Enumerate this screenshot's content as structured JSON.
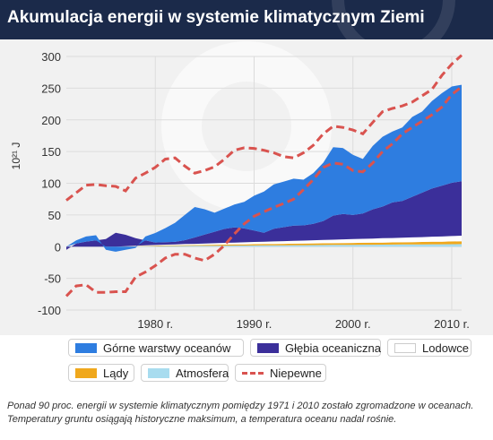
{
  "header": {
    "title": "Akumulacja energii w systemie klimatycznym Ziemi"
  },
  "footnote": "Ponad 90 proc. energii w systemie klimatycznym pomiędzy 1971 i 2010 zostało zgromadzone w oceanach. Temperatury gruntu osiągają historyczne maksimum, a temperatura oceanu nadal rośnie.",
  "colors": {
    "header_bg": "#1b2a4a",
    "plot_bg": "#f1f1f1",
    "upper_ocean": "#2e7de0",
    "deep_ocean": "#3b2f9a",
    "ice": "#ffffff",
    "land": "#f0a81c",
    "atmosphere": "#a8dcef",
    "uncertainty": "#d9534f"
  },
  "legend": {
    "items": [
      {
        "label": "Górne warstwy oceanów",
        "color": "#2e7de0",
        "style": "fill"
      },
      {
        "label": "Głębia oceaniczna",
        "color": "#3b2f9a",
        "style": "fill"
      },
      {
        "label": "Lodowce",
        "color": "#ffffff",
        "style": "fill"
      },
      {
        "label": "Lądy",
        "color": "#f0a81c",
        "style": "fill"
      },
      {
        "label": "Atmosfera",
        "color": "#a8dcef",
        "style": "fill"
      },
      {
        "label": "Niepewne",
        "color": "#d9534f",
        "style": "dashed"
      }
    ]
  },
  "chart_data": {
    "type": "area",
    "stacked": true,
    "ylabel": "10²¹ J",
    "ylim": [
      -100,
      300
    ],
    "yticks": [
      -100,
      -50,
      0,
      50,
      100,
      150,
      200,
      250,
      300
    ],
    "xlim": [
      1971,
      2011
    ],
    "xticks": [
      1980,
      1990,
      2000,
      2010
    ],
    "xtick_labels": [
      "1980 r.",
      "1990 r.",
      "2000 r.",
      "2010 r."
    ],
    "grid": true,
    "legend_position": "bottom",
    "x": [
      1971,
      1972,
      1973,
      1974,
      1975,
      1976,
      1977,
      1978,
      1979,
      1980,
      1981,
      1982,
      1983,
      1984,
      1985,
      1986,
      1987,
      1988,
      1989,
      1990,
      1991,
      1992,
      1993,
      1994,
      1995,
      1996,
      1997,
      1998,
      1999,
      2000,
      2001,
      2002,
      2003,
      2004,
      2005,
      2006,
      2007,
      2008,
      2009,
      2010,
      2011
    ],
    "series": [
      {
        "name": "Atmosfera",
        "values": [
          0,
          0,
          0,
          0,
          0,
          0,
          0.2,
          0.4,
          0.6,
          0.8,
          1,
          1.1,
          1.2,
          1.3,
          1.4,
          1.5,
          1.6,
          1.7,
          1.8,
          1.9,
          2,
          2.1,
          2.2,
          2.3,
          2.4,
          2.5,
          2.6,
          2.7,
          2.8,
          2.9,
          3,
          3.1,
          3.2,
          3.3,
          3.4,
          3.5,
          3.6,
          3.7,
          3.8,
          3.9,
          4
        ]
      },
      {
        "name": "Lądy",
        "values": [
          0,
          0,
          0,
          0,
          0,
          0,
          0.2,
          0.4,
          0.6,
          0.8,
          1,
          1,
          1.2,
          1.2,
          1.4,
          1.5,
          1.6,
          1.7,
          1.8,
          2,
          2.1,
          2.2,
          2.3,
          2.4,
          2.5,
          2.6,
          2.7,
          2.8,
          2.9,
          3,
          3.1,
          3.2,
          3.3,
          3.4,
          3.5,
          3.6,
          3.8,
          4,
          4.1,
          4.3,
          4.5
        ]
      },
      {
        "name": "Lodowce",
        "values": [
          0,
          0,
          0,
          0,
          0,
          0,
          0.3,
          0.5,
          0.8,
          1,
          1.2,
          1.5,
          1.8,
          2,
          2.2,
          2.5,
          2.8,
          3,
          3.2,
          3.5,
          3.8,
          4,
          4.2,
          4.5,
          4.7,
          5,
          5.2,
          5.5,
          5.8,
          6,
          6.2,
          6.5,
          6.8,
          7,
          7.2,
          7.5,
          7.7,
          8,
          8.2,
          8.5,
          8.8
        ]
      },
      {
        "name": "Głębia oceaniczna",
        "values": [
          -5,
          5,
          8,
          10,
          12,
          22,
          18,
          12,
          8,
          4,
          4,
          4,
          6,
          10,
          14,
          18,
          22,
          24,
          22,
          18,
          14,
          20,
          22,
          24,
          24,
          26,
          30,
          38,
          40,
          38,
          40,
          46,
          50,
          56,
          58,
          64,
          70,
          76,
          80,
          84,
          86
        ]
      },
      {
        "name": "Górne warstwy oceanów",
        "values": [
          0,
          5,
          8,
          8,
          -5,
          -8,
          -5,
          -2,
          6,
          15,
          22,
          30,
          40,
          48,
          40,
          30,
          32,
          36,
          42,
          55,
          65,
          70,
          72,
          74,
          72,
          80,
          92,
          108,
          104,
          95,
          86,
          100,
          110,
          112,
          116,
          126,
          128,
          138,
          146,
          152,
          152
        ]
      }
    ],
    "uncertainty": {
      "name": "Niepewne",
      "x": [
        1971,
        1972,
        1973,
        1974,
        1975,
        1976,
        1977,
        1978,
        1979,
        1980,
        1981,
        1982,
        1983,
        1984,
        1985,
        1986,
        1987,
        1988,
        1989,
        1990,
        1991,
        1992,
        1993,
        1994,
        1995,
        1996,
        1997,
        1998,
        1999,
        2000,
        2001,
        2002,
        2003,
        2004,
        2005,
        2006,
        2007,
        2008,
        2009,
        2010,
        2011
      ],
      "upper": [
        73,
        85,
        97,
        98,
        96,
        95,
        88,
        108,
        116,
        125,
        138,
        140,
        127,
        116,
        120,
        126,
        138,
        152,
        156,
        155,
        152,
        148,
        142,
        140,
        148,
        160,
        178,
        190,
        188,
        184,
        178,
        196,
        213,
        218,
        222,
        228,
        238,
        248,
        270,
        288,
        302
      ],
      "lower": [
        -78,
        -62,
        -60,
        -72,
        -72,
        -71,
        -71,
        -48,
        -40,
        -30,
        -18,
        -12,
        -12,
        -18,
        -22,
        -12,
        2,
        20,
        36,
        48,
        55,
        62,
        68,
        75,
        90,
        106,
        125,
        132,
        130,
        120,
        118,
        132,
        150,
        162,
        178,
        188,
        198,
        208,
        220,
        240,
        252
      ]
    }
  }
}
